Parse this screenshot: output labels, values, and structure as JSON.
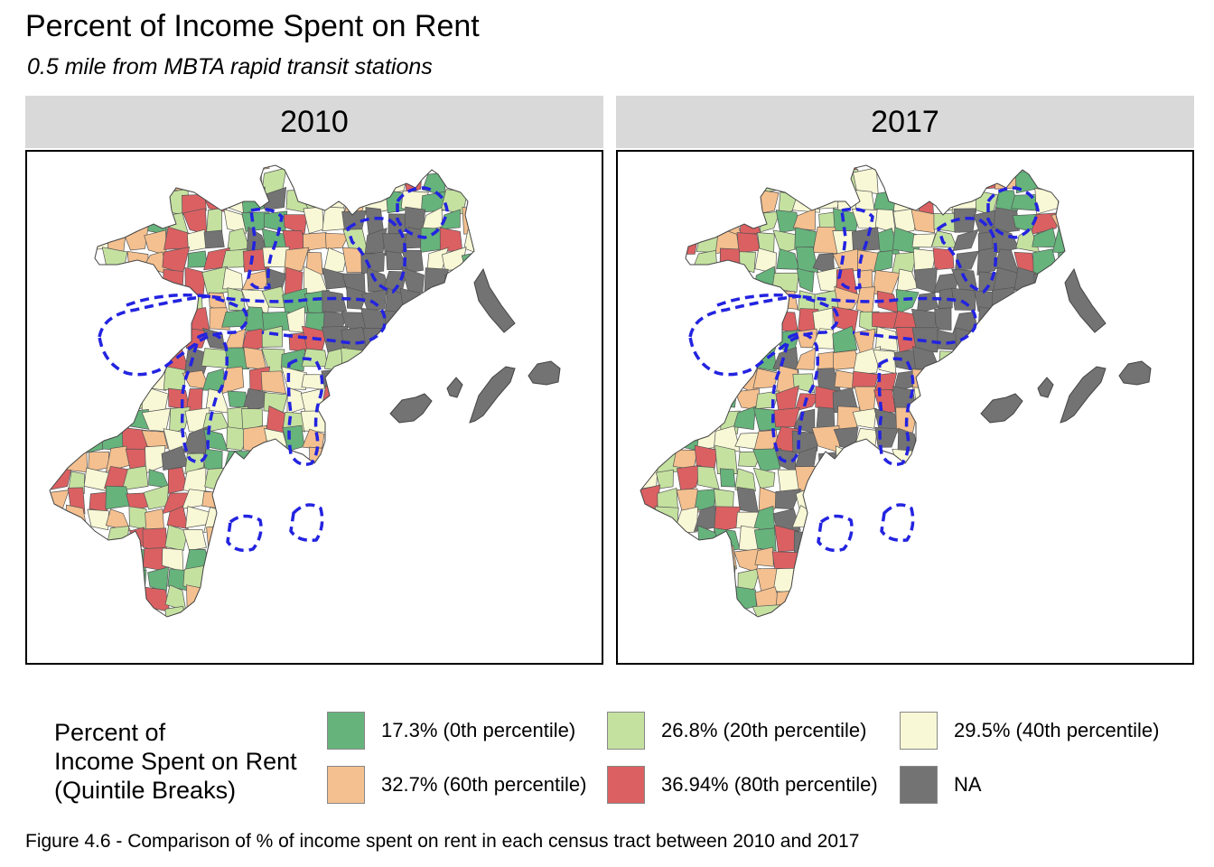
{
  "title": "Percent of Income Spent on Rent",
  "subtitle": "0.5 mile from MBTA rapid transit stations",
  "panels": [
    {
      "label": "2010"
    },
    {
      "label": "2017"
    }
  ],
  "legend": {
    "title_lines": [
      "Percent of",
      "Income Spent on Rent",
      "(Quintile Breaks)"
    ],
    "items": [
      {
        "label": "17.3% (0th percentile)",
        "color": "#66b37c"
      },
      {
        "label": "26.8% (20th percentile)",
        "color": "#c5e1a0"
      },
      {
        "label": "29.5% (40th percentile)",
        "color": "#f8f8d6"
      },
      {
        "label": "32.7% (60th percentile)",
        "color": "#f4c08f"
      },
      {
        "label": "36.94% (80th percentile)",
        "color": "#db6062"
      },
      {
        "label": "NA",
        "color": "#737373"
      }
    ]
  },
  "buffer_color": "#2323e0",
  "caption": "Figure 4.6 - Comparison of % of income spent on rent in each census tract between 2010 and 2017"
}
